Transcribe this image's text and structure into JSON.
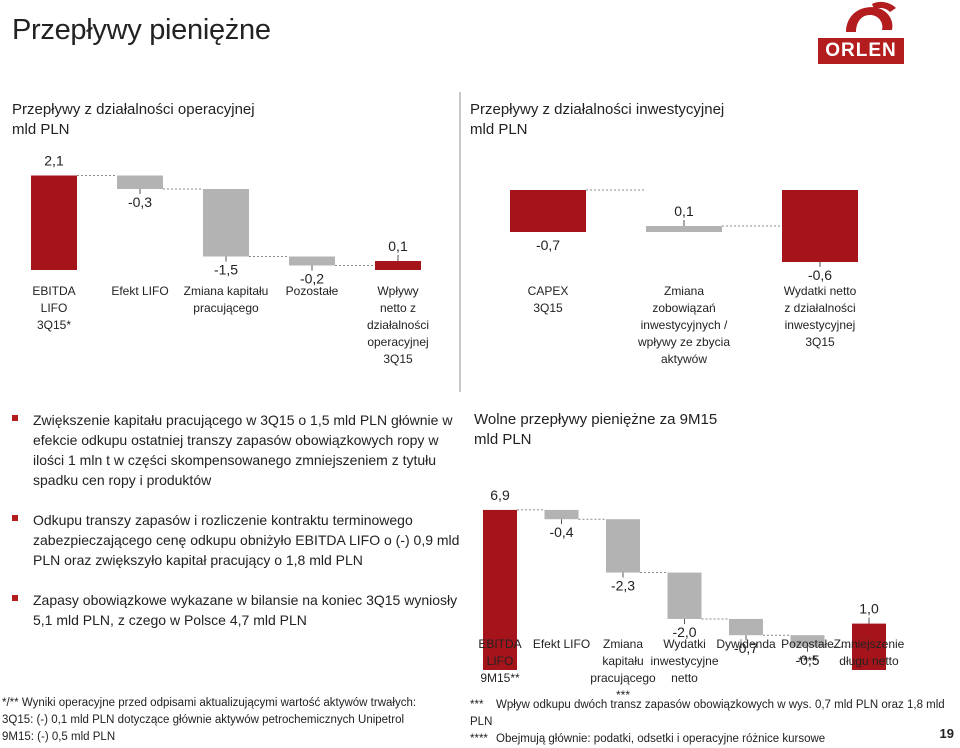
{
  "page": {
    "title": "Przepływy pieniężne",
    "page_number": "19",
    "logo_text": "ORLEN"
  },
  "colors": {
    "red": "#a6141b",
    "grey": "#b3b3b3",
    "divider": "#c9c9c9"
  },
  "left_section": {
    "title": "Przepływy z działalności operacyjnej",
    "unit": "mld PLN"
  },
  "right_section": {
    "title": "Przepływy z działalności inwestycyjnej",
    "unit": "mld PLN"
  },
  "bottom_section": {
    "title": "Wolne przepływy pieniężne za 9M15",
    "unit": "mld PLN"
  },
  "bullets": [
    "Zwiększenie kapitału pracującego w 3Q15 o 1,5 mld PLN głównie w efekcie odkupu ostatniej transzy zapasów obowiązkowych ropy w ilości 1 mln t w części skompensowanego zmniejszeniem z tytułu spadku cen ropy i produktów",
    "Odkupu transzy zapasów i rozliczenie kontraktu terminowego zabezpieczającego cenę odkupu obniżyło EBITDA LIFO o (-) 0,9 mld PLN oraz zwiększyło kapitał pracujący o 1,8 mld PLN",
    "Zapasy obowiązkowe wykazane w bilansie na koniec 3Q15 wyniosły 5,1 mld PLN, z czego w Polsce 4,7 mld PLN"
  ],
  "footnotes_left": [
    "*/** Wyniki operacyjne przed odpisami aktualizującymi wartość aktywów trwałych:",
    "3Q15: (-) 0,1 mld PLN dotyczące głównie aktywów petrochemicznych Unipetrol",
    "9M15: (-) 0,5 mld PLN"
  ],
  "footnotes_right": [
    {
      "mark": "***",
      "text": "Wpływ odkupu dwóch transz zapasów obowiązkowych w wys. 0,7 mld PLN oraz 1,8 mld PLN"
    },
    {
      "mark": "****",
      "text": "Obejmują głównie: podatki, odsetki i operacyjne różnice kursowe"
    }
  ],
  "chart_data": [
    {
      "id": "operating",
      "type": "waterfall",
      "title": "Przepływy z działalności operacyjnej",
      "unit": "mld PLN",
      "categories": [
        [
          "EBITDA",
          "LIFO",
          "3Q15*"
        ],
        [
          "Efekt LIFO"
        ],
        [
          "Zmiana kapitału",
          "pracującego"
        ],
        [
          "Pozostałe"
        ],
        [
          "Wpływy",
          "netto z",
          "działalności",
          "operacyjnej",
          "3Q15"
        ]
      ],
      "values": [
        2.1,
        -0.3,
        -1.5,
        -0.2,
        0.1
      ],
      "labels": [
        "2,1",
        "-0,3",
        "-1,5",
        "-0,2",
        "0,1"
      ],
      "kinds": [
        "total",
        "delta",
        "delta",
        "delta",
        "total"
      ]
    },
    {
      "id": "investing",
      "type": "waterfall",
      "title": "Przepływy z działalności inwestycyjnej",
      "unit": "mld PLN",
      "categories": [
        [
          "CAPEX",
          "3Q15"
        ],
        [
          "Zmiana",
          "zobowiązań",
          "inwestycyjnych /",
          "wpływy ze zbycia",
          "aktywów"
        ],
        [
          "Wydatki netto",
          "z działalności",
          "inwestycyjnej",
          "3Q15"
        ]
      ],
      "values": [
        -0.7,
        0.1,
        -0.6
      ],
      "labels": [
        "-0,7",
        "0,1",
        "-0,6"
      ],
      "kinds": [
        "total",
        "delta",
        "total"
      ]
    },
    {
      "id": "fcf",
      "type": "waterfall",
      "title": "Wolne przepływy pieniężne za 9M15",
      "unit": "mld PLN",
      "categories": [
        [
          "EBITDA",
          "LIFO",
          "9M15**"
        ],
        [
          "Efekt LIFO"
        ],
        [
          "Zmiana",
          "kapitału",
          "pracującego",
          "***"
        ],
        [
          "Wydatki",
          "inwestycyjne",
          "netto"
        ],
        [
          "Dywidenda"
        ],
        [
          "Pozostałe",
          "****"
        ],
        [
          "Zmniejszenie",
          "długu netto"
        ]
      ],
      "values": [
        6.9,
        -0.4,
        -2.3,
        -2.0,
        -0.7,
        -0.5,
        1.0
      ],
      "labels": [
        "6,9",
        "-0,4",
        "-2,3",
        "-2,0",
        "-0,7",
        "-0,5",
        "1,0"
      ],
      "kinds": [
        "total",
        "delta",
        "delta",
        "delta",
        "delta",
        "delta",
        "total"
      ]
    }
  ]
}
